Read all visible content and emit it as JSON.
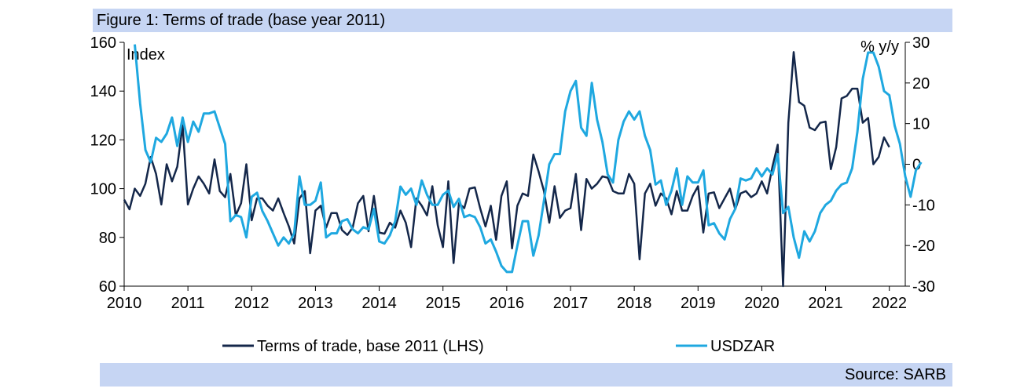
{
  "title": "Figure 1: Terms of trade (base year 2011)",
  "source": "Source: SARB",
  "colors": {
    "terms_of_trade": "#14274a",
    "usdzar": "#1fa8e0",
    "banner": "#c6d5f3"
  },
  "chart_data": {
    "type": "line",
    "x_ticks": [
      "2010",
      "2011",
      "2012",
      "2013",
      "2014",
      "2015",
      "2016",
      "2017",
      "2018",
      "2019",
      "2020",
      "2021",
      "2022"
    ],
    "xlim": [
      2010,
      2022.25
    ],
    "y_left": {
      "label": "Index",
      "ylim": [
        60,
        160
      ],
      "ticks": [
        60,
        80,
        100,
        120,
        140,
        160
      ]
    },
    "y_right": {
      "label": "% y/y",
      "ylim": [
        -30,
        30
      ],
      "ticks": [
        -30,
        -20,
        -10,
        0,
        10,
        20,
        30
      ]
    },
    "grid": false,
    "legend": "bottom",
    "series": [
      {
        "name": "Terms of trade, base 2011 (LHS)",
        "axis": "left",
        "x_start": 2010.0,
        "x_step": 0.0833333,
        "values": [
          95.5,
          91.5,
          100,
          97,
          102,
          113,
          106,
          93.5,
          110,
          103,
          109,
          126,
          93.5,
          100,
          105,
          102,
          98,
          112,
          99,
          96.5,
          106,
          89,
          94,
          110,
          87,
          96,
          96,
          93,
          91,
          96,
          90,
          84.5,
          77.5,
          96,
          99,
          73.5,
          91,
          93,
          84,
          90,
          90,
          83,
          81,
          84,
          94,
          97,
          82.5,
          97,
          82,
          81.5,
          86,
          84,
          91,
          86,
          76,
          96,
          93,
          89,
          101,
          85,
          76,
          103,
          69.5,
          94,
          92,
          100,
          100.5,
          92,
          84.5,
          93,
          79,
          97,
          103,
          75.5,
          93,
          98,
          97,
          114,
          107,
          99,
          86,
          101,
          88,
          91,
          92,
          106,
          83,
          104,
          100,
          102,
          105,
          104.5,
          99,
          98,
          98,
          106,
          102,
          71,
          98,
          102,
          93,
          98,
          96,
          89.5,
          99,
          91,
          91,
          97,
          101,
          82,
          98,
          98.5,
          92,
          96,
          100,
          91.5,
          98,
          99,
          96.5,
          98,
          103,
          98,
          109,
          118,
          60,
          127,
          156,
          135.5,
          134,
          125,
          124,
          127,
          127.5,
          108,
          117,
          137,
          138,
          141,
          141,
          127,
          129,
          110,
          113,
          121,
          117
        ]
      },
      {
        "name": "USDZAR",
        "axis": "right",
        "x_start": 2010.1667,
        "x_step": 0.0833333,
        "values": [
          29.5,
          15,
          3.5,
          0.5,
          6.5,
          5.5,
          7.5,
          11.5,
          4.5,
          11.5,
          5.5,
          10.5,
          8,
          12.5,
          12.5,
          13,
          9,
          5,
          -14,
          -12.5,
          -13,
          -18,
          -8,
          -7,
          -11.5,
          -14,
          -17,
          -20,
          -18,
          -19.5,
          -17,
          -3,
          -10,
          -10,
          -9,
          -4.5,
          -18,
          -17,
          -17,
          -14,
          -13.5,
          -16,
          -17,
          -15.5,
          -16,
          -11,
          -19,
          -19.5,
          -17.5,
          -14,
          -5.5,
          -7.5,
          -6,
          -10,
          -4,
          -7.5,
          -10,
          -10,
          -7.5,
          -6.5,
          -10.5,
          -8.5,
          -13,
          -12.5,
          -13,
          -15.5,
          -19.5,
          -18.5,
          -21.5,
          -25,
          -26.5,
          -26.5,
          -20,
          -14,
          -14,
          -22.5,
          -17.5,
          -9,
          0,
          2.5,
          2.5,
          13,
          18,
          20.5,
          9,
          7,
          20,
          11,
          5.5,
          -2.5,
          -4.5,
          6,
          10.5,
          13,
          11,
          13,
          7,
          3.5,
          -5,
          -4,
          -10,
          -6.5,
          -1,
          -10,
          -3,
          -4.5,
          -4.5,
          -1.5,
          -15,
          -14.5,
          -17,
          -18.5,
          -13.5,
          -11,
          -3.5,
          -4,
          -3.5,
          -1,
          -3,
          -1,
          -2.5,
          2.5,
          -12,
          -10.5,
          -18,
          -23,
          -16.5,
          -19,
          -16.5,
          -12,
          -10,
          -9,
          -6.5,
          -5,
          -4.5,
          -1,
          8,
          21,
          27.5,
          27.5,
          24,
          18,
          17,
          9.5,
          5,
          -3,
          -8,
          -1.5,
          0.5
        ]
      }
    ]
  }
}
